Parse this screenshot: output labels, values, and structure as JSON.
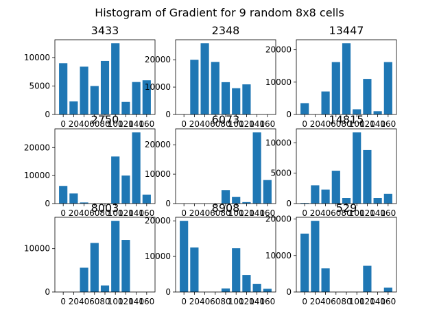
{
  "suptitle": "Histogram of Gradient for 9 random 8x8 cells",
  "colors": {
    "bar": "#1f77b4"
  },
  "chart_data": [
    {
      "type": "bar",
      "title": "3433",
      "x": [
        0,
        20,
        40,
        60,
        80,
        100,
        120,
        140,
        160
      ],
      "values": [
        9000,
        2300,
        8400,
        5000,
        9400,
        12500,
        2200,
        5700,
        6000
      ],
      "yticks": [
        0,
        5000,
        10000
      ]
    },
    {
      "type": "bar",
      "title": "2348",
      "x": [
        0,
        20,
        40,
        60,
        80,
        100,
        120,
        140,
        160
      ],
      "values": [
        0,
        20000,
        26000,
        19200,
        11800,
        9600,
        11000,
        0,
        0
      ],
      "yticks": [
        0,
        10000,
        20000
      ]
    },
    {
      "type": "bar",
      "title": "13447",
      "x": [
        0,
        20,
        40,
        60,
        80,
        100,
        120,
        140,
        160
      ],
      "values": [
        3500,
        0,
        7100,
        16200,
        22000,
        1600,
        11000,
        1000,
        16200
      ],
      "yticks": [
        0,
        10000,
        20000
      ]
    },
    {
      "type": "bar",
      "title": "2750",
      "x": [
        0,
        20,
        40,
        60,
        80,
        100,
        120,
        140,
        160
      ],
      "values": [
        6300,
        3600,
        400,
        0,
        0,
        16800,
        10000,
        25400,
        3200
      ],
      "yticks": [
        0,
        10000,
        20000
      ]
    },
    {
      "type": "bar",
      "title": "6073",
      "x": [
        0,
        20,
        40,
        60,
        80,
        100,
        120,
        140,
        160
      ],
      "values": [
        0,
        0,
        0,
        0,
        4600,
        2300,
        500,
        24200,
        8000
      ],
      "yticks": [
        0,
        10000,
        20000
      ]
    },
    {
      "type": "bar",
      "title": "14815",
      "x": [
        0,
        20,
        40,
        60,
        80,
        100,
        120,
        140,
        160
      ],
      "values": [
        100,
        3000,
        2300,
        5400,
        900,
        11700,
        8800,
        900,
        1600
      ],
      "yticks": [
        0,
        5000,
        10000
      ]
    },
    {
      "type": "bar",
      "title": "8003",
      "x": [
        0,
        20,
        40,
        60,
        80,
        100,
        120,
        140,
        160
      ],
      "values": [
        0,
        0,
        5600,
        11300,
        1500,
        16400,
        12000,
        0,
        0
      ],
      "yticks": [
        0,
        10000
      ]
    },
    {
      "type": "bar",
      "title": "8908",
      "x": [
        0,
        20,
        40,
        60,
        80,
        100,
        120,
        140,
        160
      ],
      "values": [
        20000,
        12500,
        0,
        0,
        1000,
        12300,
        4800,
        2300,
        900
      ],
      "yticks": [
        0,
        10000,
        20000
      ]
    },
    {
      "type": "bar",
      "title": "529",
      "x": [
        0,
        20,
        40,
        60,
        80,
        100,
        120,
        140,
        160
      ],
      "values": [
        16000,
        19500,
        6500,
        0,
        0,
        0,
        7200,
        0,
        1200
      ],
      "yticks": [
        0,
        10000,
        20000
      ]
    }
  ]
}
